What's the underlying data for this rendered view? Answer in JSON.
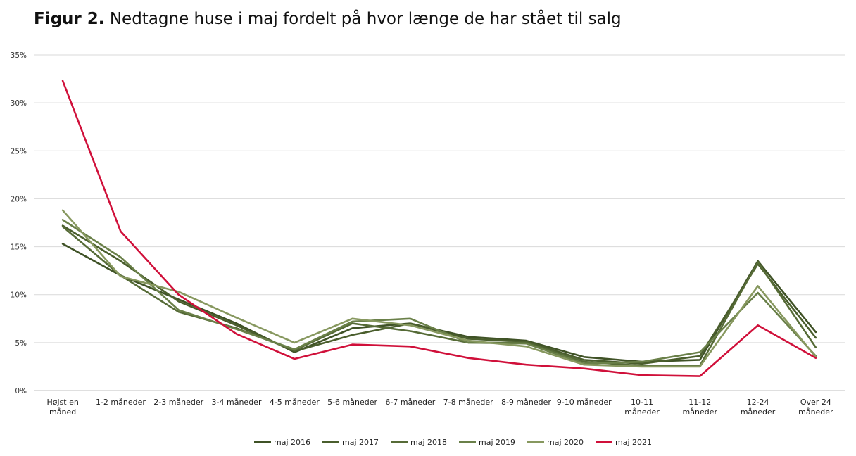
{
  "header": {
    "title_bold": "Figur 2.",
    "title_rest": "Nedtagne huse i maj fordelt på hvor længe de har stået til salg"
  },
  "chart_data": {
    "type": "line",
    "categories": [
      [
        "Højst en",
        "måned"
      ],
      [
        "1-2 måneder"
      ],
      [
        "2-3 måneder"
      ],
      [
        "3-4 måneder"
      ],
      [
        "4-5 måneder"
      ],
      [
        "5-6 måneder"
      ],
      [
        "6-7 måneder"
      ],
      [
        "7-8 måneder"
      ],
      [
        "8-9 måneder"
      ],
      [
        "9-10 måneder"
      ],
      [
        "10-11",
        "måneder"
      ],
      [
        "11-12",
        "måneder"
      ],
      [
        "12-24",
        "måneder"
      ],
      [
        "Over 24",
        "måneder"
      ]
    ],
    "ylim": [
      0,
      35
    ],
    "yticks": [
      0,
      5,
      10,
      15,
      20,
      25,
      30,
      35
    ],
    "ytick_labels": [
      "0%",
      "5%",
      "10%",
      "15%",
      "20%",
      "25%",
      "30%",
      "35%"
    ],
    "grid": true,
    "legend_position": "bottom",
    "series": [
      {
        "name": "maj 2016",
        "color": "#3f5226",
        "values": [
          15.3,
          12.0,
          9.5,
          7.0,
          4.0,
          6.5,
          7.0,
          5.6,
          5.2,
          3.5,
          3.0,
          3.2,
          13.5,
          6.1
        ]
      },
      {
        "name": "maj 2017",
        "color": "#4a5e2d",
        "values": [
          17.2,
          13.5,
          9.3,
          6.8,
          4.1,
          5.8,
          7.0,
          5.4,
          5.1,
          3.2,
          2.8,
          3.6,
          13.2,
          5.5
        ]
      },
      {
        "name": "maj 2018",
        "color": "#566b37",
        "values": [
          17.1,
          12.0,
          8.2,
          6.5,
          4.2,
          7.0,
          6.2,
          5.0,
          5.0,
          3.0,
          2.6,
          2.6,
          13.4,
          4.5
        ]
      },
      {
        "name": "maj 2019",
        "color": "#6a8049",
        "values": [
          17.8,
          13.9,
          8.4,
          6.4,
          4.3,
          7.2,
          7.5,
          5.0,
          4.9,
          2.8,
          3.0,
          4.0,
          10.2,
          3.6
        ]
      },
      {
        "name": "maj 2020",
        "color": "#87985f",
        "values": [
          18.8,
          11.9,
          10.3,
          7.6,
          5.0,
          7.5,
          6.8,
          5.2,
          4.6,
          2.7,
          2.5,
          2.5,
          10.9,
          3.5
        ]
      },
      {
        "name": "maj 2021",
        "color": "#d0103a",
        "values": [
          32.3,
          16.6,
          10.0,
          5.9,
          3.3,
          4.8,
          4.6,
          3.4,
          2.7,
          2.3,
          1.6,
          1.5,
          6.8,
          3.4
        ]
      }
    ]
  }
}
